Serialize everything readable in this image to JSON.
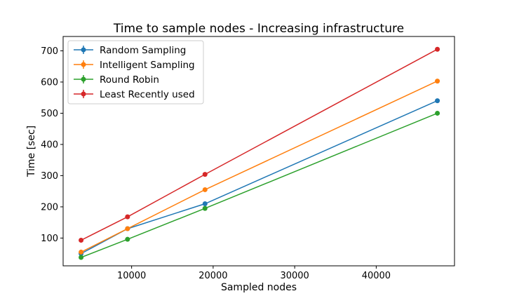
{
  "chart_data": {
    "type": "line",
    "title": "Time to sample nodes - Increasing infrastructure",
    "xlabel": "Sampled nodes",
    "ylabel": "Time [sec]",
    "xlim": [
      0,
      50000
    ],
    "ylim": [
      0,
      750
    ],
    "xticks": [
      10000,
      20000,
      30000,
      40000
    ],
    "yticks": [
      100,
      200,
      300,
      400,
      500,
      600,
      700
    ],
    "grid": false,
    "legend_position": "top-left",
    "x": [
      3800,
      9500,
      19000,
      47500
    ],
    "series": [
      {
        "name": "Random Sampling",
        "color": "#1f77b4",
        "values": [
          50,
          130,
          210,
          540
        ]
      },
      {
        "name": "Intelligent Sampling",
        "color": "#ff7f0e",
        "values": [
          55,
          130,
          255,
          603
        ]
      },
      {
        "name": "Round Robin",
        "color": "#2ca02c",
        "values": [
          38,
          96,
          195,
          500
        ]
      },
      {
        "name": "Least Recently used",
        "color": "#d62728",
        "values": [
          93,
          168,
          304,
          705
        ]
      }
    ]
  }
}
